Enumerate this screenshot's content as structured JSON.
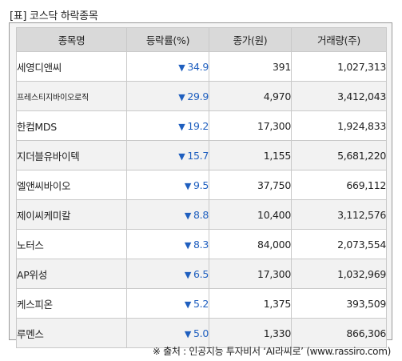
{
  "title": "[표] 코스닥 하락종목",
  "table": {
    "headers": [
      "종목명",
      "등락률(%)",
      "종가(원)",
      "거래량(주)"
    ],
    "down_symbol": "▼",
    "rows": [
      {
        "name": "세영디앤씨",
        "rate": "34.9",
        "close": "391",
        "volume": "1,027,313"
      },
      {
        "name": "프레스티지바이오로직",
        "rate": "29.9",
        "close": "4,970",
        "volume": "3,412,043"
      },
      {
        "name": "한컴MDS",
        "rate": "19.2",
        "close": "17,300",
        "volume": "1,924,833"
      },
      {
        "name": "지더블유바이텍",
        "rate": "15.7",
        "close": "1,155",
        "volume": "5,681,220"
      },
      {
        "name": "엘앤씨바이오",
        "rate": "9.5",
        "close": "37,750",
        "volume": "669,112"
      },
      {
        "name": "제이씨케미칼",
        "rate": "8.8",
        "close": "10,400",
        "volume": "3,112,576"
      },
      {
        "name": "노터스",
        "rate": "8.3",
        "close": "84,000",
        "volume": "2,073,554"
      },
      {
        "name": "AP위성",
        "rate": "6.5",
        "close": "17,300",
        "volume": "1,032,969"
      },
      {
        "name": "케스피온",
        "rate": "5.2",
        "close": "1,375",
        "volume": "393,509"
      },
      {
        "name": "루멘스",
        "rate": "5.0",
        "close": "1,330",
        "volume": "866,306"
      }
    ]
  },
  "footer": "※ 출처 : 인공지능 투자비서 ‘AI라씨로’ (www.rassiro.com)",
  "colors": {
    "down": "#1f5fbf",
    "header_bg": "#d9d9d9",
    "alt_row_bg": "#f2f2f2"
  }
}
